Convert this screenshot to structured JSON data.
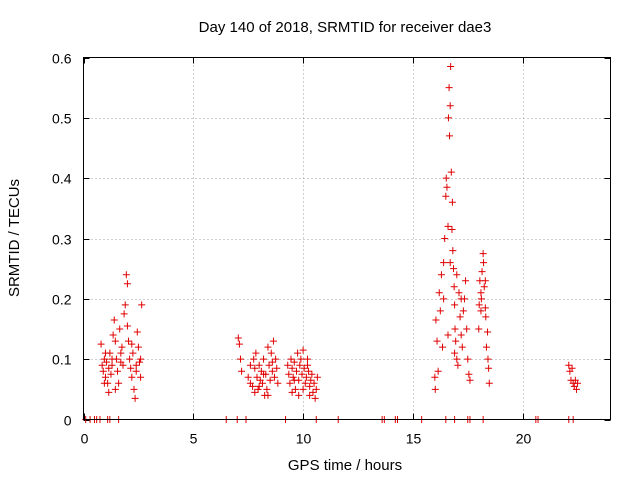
{
  "chart_data": {
    "type": "scatter",
    "title": "Day 140 of 2018, SRMTID for receiver dae3",
    "xlabel": "GPS time / hours",
    "ylabel": "SRMTID / TECUs",
    "xlim": [
      0,
      24
    ],
    "ylim": [
      0,
      0.6
    ],
    "xticks": [
      0,
      5,
      10,
      15,
      20
    ],
    "yticks": [
      0,
      0.1,
      0.2,
      0.3,
      0.4,
      0.5,
      0.6
    ],
    "xtick_labels": [
      "0",
      "5",
      "10",
      "15",
      "20"
    ],
    "ytick_labels": [
      "0",
      "0.1",
      "0.2",
      "0.3",
      "0.4",
      "0.5",
      "0.6"
    ],
    "grid": true,
    "legend": "none",
    "marker": "plus",
    "marker_color": "#e00000",
    "series": [
      {
        "name": "dae3",
        "points": [
          [
            0.1,
            0
          ],
          [
            0.3,
            0
          ],
          [
            0.5,
            0
          ],
          [
            0.6,
            0
          ],
          [
            0.75,
            0
          ],
          [
            1.1,
            0
          ],
          [
            1.2,
            0
          ],
          [
            1.6,
            0
          ],
          [
            6.5,
            0
          ],
          [
            7.0,
            0
          ],
          [
            7.4,
            0
          ],
          [
            9.2,
            0
          ],
          [
            10.6,
            0
          ],
          [
            11.6,
            0
          ],
          [
            13.6,
            0
          ],
          [
            13.7,
            0
          ],
          [
            14.2,
            0
          ],
          [
            14.3,
            0
          ],
          [
            15.4,
            0
          ],
          [
            16.5,
            0
          ],
          [
            16.9,
            0
          ],
          [
            17.5,
            0
          ],
          [
            17.6,
            0
          ],
          [
            18.2,
            0
          ],
          [
            20.6,
            0
          ],
          [
            20.7,
            0
          ],
          [
            22.1,
            0
          ],
          [
            22.3,
            0
          ],
          [
            0.8,
            0.125
          ],
          [
            0.85,
            0.09
          ],
          [
            0.9,
            0.08
          ],
          [
            0.95,
            0.1
          ],
          [
            1.0,
            0.07
          ],
          [
            1.05,
            0.095
          ],
          [
            1.1,
            0.06
          ],
          [
            1.15,
            0.085
          ],
          [
            1.2,
            0.11
          ],
          [
            1.25,
            0.075
          ],
          [
            1.3,
            0.09
          ],
          [
            1.35,
            0.14
          ],
          [
            1.4,
            0.165
          ],
          [
            1.45,
            0.13
          ],
          [
            1.5,
            0.1
          ],
          [
            1.55,
            0.08
          ],
          [
            1.6,
            0.06
          ],
          [
            1.65,
            0.15
          ],
          [
            1.7,
            0.11
          ],
          [
            1.75,
            0.12
          ],
          [
            1.8,
            0.09
          ],
          [
            1.85,
            0.175
          ],
          [
            1.9,
            0.19
          ],
          [
            1.95,
            0.24
          ],
          [
            2.0,
            0.225
          ],
          [
            2.05,
            0.13
          ],
          [
            2.1,
            0.1
          ],
          [
            2.15,
            0.085
          ],
          [
            2.2,
            0.07
          ],
          [
            2.25,
            0.11
          ],
          [
            2.3,
            0.05
          ],
          [
            2.35,
            0.035
          ],
          [
            2.4,
            0.09
          ],
          [
            2.45,
            0.145
          ],
          [
            2.5,
            0.12
          ],
          [
            2.55,
            0.095
          ],
          [
            2.6,
            0.07
          ],
          [
            2.65,
            0.19
          ],
          [
            0.95,
            0.06
          ],
          [
            1.15,
            0.045
          ],
          [
            1.45,
            0.05
          ],
          [
            2.0,
            0.155
          ],
          [
            2.2,
            0.125
          ],
          [
            1.3,
            0.1
          ],
          [
            2.4,
            0.08
          ],
          [
            1.0,
            0.11
          ],
          [
            1.7,
            0.095
          ],
          [
            2.6,
            0.1
          ],
          [
            7.05,
            0.135
          ],
          [
            7.1,
            0.125
          ],
          [
            7.15,
            0.1
          ],
          [
            7.2,
            0.08
          ],
          [
            7.5,
            0.07
          ],
          [
            7.6,
            0.06
          ],
          [
            7.7,
            0.055
          ],
          [
            7.75,
            0.1
          ],
          [
            7.8,
            0.085
          ],
          [
            7.85,
            0.11
          ],
          [
            7.9,
            0.07
          ],
          [
            7.95,
            0.05
          ],
          [
            8.0,
            0.09
          ],
          [
            8.05,
            0.065
          ],
          [
            8.1,
            0.08
          ],
          [
            8.15,
            0.06
          ],
          [
            8.2,
            0.1
          ],
          [
            8.25,
            0.04
          ],
          [
            8.3,
            0.075
          ],
          [
            8.35,
            0.05
          ],
          [
            8.4,
            0.12
          ],
          [
            8.45,
            0.09
          ],
          [
            8.5,
            0.065
          ],
          [
            8.55,
            0.11
          ],
          [
            8.6,
            0.08
          ],
          [
            8.65,
            0.13
          ],
          [
            8.7,
            0.07
          ],
          [
            8.75,
            0.1
          ],
          [
            8.8,
            0.085
          ],
          [
            8.85,
            0.06
          ],
          [
            7.6,
            0.09
          ],
          [
            7.8,
            0.045
          ],
          [
            8.0,
            0.055
          ],
          [
            8.2,
            0.075
          ],
          [
            8.4,
            0.04
          ],
          [
            8.6,
            0.095
          ],
          [
            9.3,
            0.09
          ],
          [
            9.35,
            0.075
          ],
          [
            9.4,
            0.06
          ],
          [
            9.45,
            0.1
          ],
          [
            9.5,
            0.085
          ],
          [
            9.55,
            0.07
          ],
          [
            9.6,
            0.095
          ],
          [
            9.65,
            0.05
          ],
          [
            9.7,
            0.08
          ],
          [
            9.75,
            0.11
          ],
          [
            9.8,
            0.065
          ],
          [
            9.85,
            0.09
          ],
          [
            9.9,
            0.1
          ],
          [
            9.95,
            0.075
          ],
          [
            10.0,
            0.115
          ],
          [
            10.05,
            0.085
          ],
          [
            10.1,
            0.06
          ],
          [
            10.15,
            0.07
          ],
          [
            10.2,
            0.09
          ],
          [
            10.25,
            0.08
          ],
          [
            10.3,
            0.055
          ],
          [
            10.35,
            0.065
          ],
          [
            10.4,
            0.075
          ],
          [
            10.45,
            0.045
          ],
          [
            10.5,
            0.06
          ],
          [
            10.55,
            0.035
          ],
          [
            10.6,
            0.05
          ],
          [
            10.65,
            0.07
          ],
          [
            9.5,
            0.045
          ],
          [
            9.8,
            0.04
          ],
          [
            10.0,
            0.05
          ],
          [
            10.3,
            0.04
          ],
          [
            9.6,
            0.065
          ],
          [
            10.2,
            0.1
          ],
          [
            16.0,
            0.07
          ],
          [
            16.02,
            0.05
          ],
          [
            16.05,
            0.165
          ],
          [
            16.1,
            0.13
          ],
          [
            16.15,
            0.08
          ],
          [
            16.2,
            0.21
          ],
          [
            16.25,
            0.18
          ],
          [
            16.3,
            0.24
          ],
          [
            16.35,
            0.12
          ],
          [
            16.4,
            0.26
          ],
          [
            16.45,
            0.3
          ],
          [
            16.5,
            0.37
          ],
          [
            16.52,
            0.4
          ],
          [
            16.55,
            0.385
          ],
          [
            16.6,
            0.32
          ],
          [
            16.62,
            0.5
          ],
          [
            16.65,
            0.55
          ],
          [
            16.67,
            0.47
          ],
          [
            16.7,
            0.52
          ],
          [
            16.72,
            0.585
          ],
          [
            16.75,
            0.41
          ],
          [
            16.78,
            0.315
          ],
          [
            16.8,
            0.36
          ],
          [
            16.82,
            0.28
          ],
          [
            16.85,
            0.25
          ],
          [
            16.88,
            0.22
          ],
          [
            16.9,
            0.19
          ],
          [
            16.92,
            0.15
          ],
          [
            16.95,
            0.13
          ],
          [
            17.0,
            0.1
          ],
          [
            17.05,
            0.09
          ],
          [
            17.1,
            0.21
          ],
          [
            17.15,
            0.17
          ],
          [
            17.2,
            0.14
          ],
          [
            17.25,
            0.12
          ],
          [
            17.3,
            0.18
          ],
          [
            17.35,
            0.2
          ],
          [
            17.4,
            0.23
          ],
          [
            17.45,
            0.15
          ],
          [
            17.5,
            0.1
          ],
          [
            17.55,
            0.075
          ],
          [
            17.6,
            0.065
          ],
          [
            16.4,
            0.2
          ],
          [
            16.6,
            0.14
          ],
          [
            16.7,
            0.26
          ],
          [
            16.9,
            0.11
          ],
          [
            17.0,
            0.24
          ],
          [
            17.2,
            0.2
          ],
          [
            18.0,
            0.15
          ],
          [
            18.02,
            0.19
          ],
          [
            18.05,
            0.23
          ],
          [
            18.1,
            0.21
          ],
          [
            18.12,
            0.2
          ],
          [
            18.15,
            0.245
          ],
          [
            18.2,
            0.275
          ],
          [
            18.22,
            0.26
          ],
          [
            18.25,
            0.22
          ],
          [
            18.3,
            0.185
          ],
          [
            18.32,
            0.17
          ],
          [
            18.35,
            0.12
          ],
          [
            18.4,
            0.145
          ],
          [
            18.42,
            0.1
          ],
          [
            18.45,
            0.085
          ],
          [
            18.48,
            0.06
          ],
          [
            18.1,
            0.18
          ],
          [
            18.3,
            0.23
          ],
          [
            22.1,
            0.09
          ],
          [
            22.15,
            0.08
          ],
          [
            22.2,
            0.065
          ],
          [
            22.25,
            0.085
          ],
          [
            22.3,
            0.06
          ],
          [
            22.35,
            0.055
          ],
          [
            22.4,
            0.065
          ],
          [
            22.45,
            0.05
          ],
          [
            22.5,
            0.06
          ]
        ]
      }
    ]
  }
}
